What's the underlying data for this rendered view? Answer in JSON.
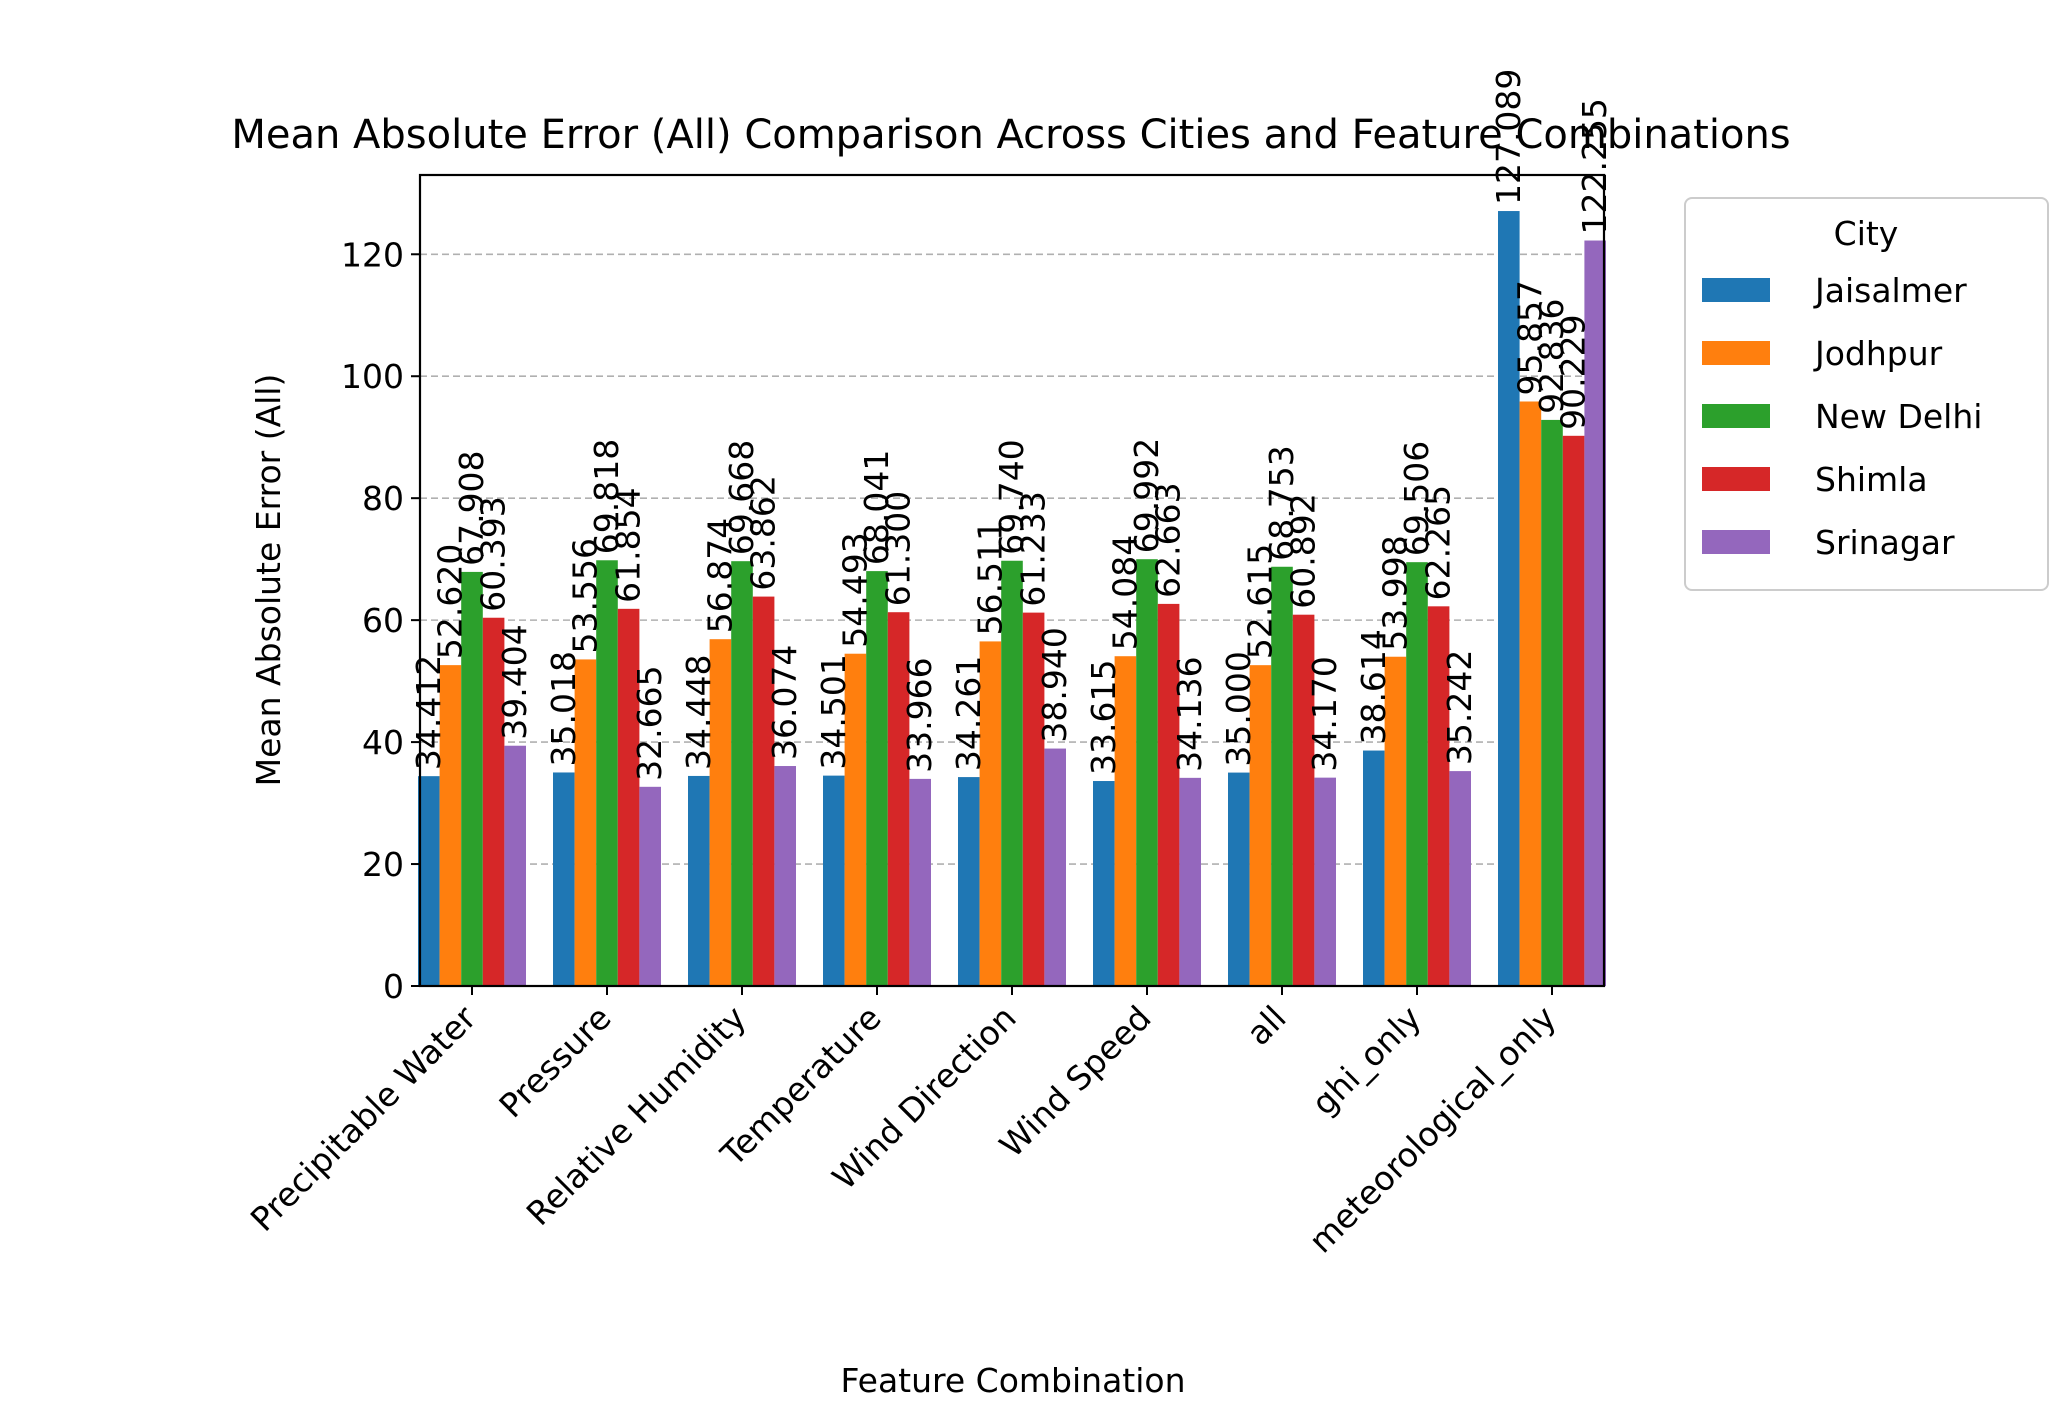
{
  "chart_data": {
    "type": "bar",
    "title": "Mean Absolute Error (All) Comparison Across Cities and Feature Combinations",
    "xlabel": "Feature Combination",
    "ylabel": "Mean Absolute Error (All)",
    "ylim": [
      0,
      133
    ],
    "yticks": [
      0,
      20,
      40,
      60,
      80,
      100,
      120
    ],
    "grid": "y-dashed",
    "legend_title": "City",
    "legend_position": "outside-right",
    "categories": [
      "Precipitable Water",
      "Pressure",
      "Relative Humidity",
      "Temperature",
      "Wind Direction",
      "Wind Speed",
      "all",
      "ghi_only",
      "meteorological_only"
    ],
    "series": [
      {
        "name": "Jaisalmer",
        "color": "#1f77b4",
        "values": [
          34.412,
          35.018,
          34.448,
          34.501,
          34.261,
          33.615,
          35.0,
          38.614,
          127.089
        ]
      },
      {
        "name": "Jodhpur",
        "color": "#ff7f0e",
        "values": [
          52.62,
          53.556,
          56.874,
          54.493,
          56.511,
          54.084,
          52.615,
          53.998,
          95.857
        ]
      },
      {
        "name": "New Delhi",
        "color": "#2ca02c",
        "values": [
          67.908,
          69.818,
          69.668,
          68.041,
          69.74,
          69.992,
          68.753,
          69.506,
          92.836
        ]
      },
      {
        "name": "Shimla",
        "color": "#d62728",
        "values": [
          60.393,
          61.854,
          63.862,
          61.3,
          61.233,
          62.663,
          60.892,
          62.265,
          90.229
        ]
      },
      {
        "name": "Srinagar",
        "color": "#9467bd",
        "values": [
          39.404,
          32.665,
          36.074,
          33.966,
          38.94,
          34.136,
          34.17,
          35.242,
          122.255
        ]
      }
    ],
    "value_labels": [
      [
        "34.412",
        "35.018",
        "34.448",
        "34.501",
        "34.261",
        "33.615",
        "35.000",
        "38.614",
        "127.089"
      ],
      [
        "52.620",
        "53.556",
        "56.874",
        "54.493",
        "56.511",
        "54.084",
        "52.615",
        "53.998",
        "95.857"
      ],
      [
        "67.908",
        "69.818",
        "69.668",
        "68.041",
        "69.740",
        "69.992",
        "68.753",
        "69.506",
        "92.836"
      ],
      [
        "60.393",
        "61.854",
        "63.862",
        "61.300",
        "61.233",
        "62.663",
        "60.892",
        "62.265",
        "90.229"
      ],
      [
        "39.404",
        "32.665",
        "36.074",
        "33.966",
        "38.940",
        "34.136",
        "34.170",
        "35.242",
        "122.255"
      ]
    ]
  }
}
